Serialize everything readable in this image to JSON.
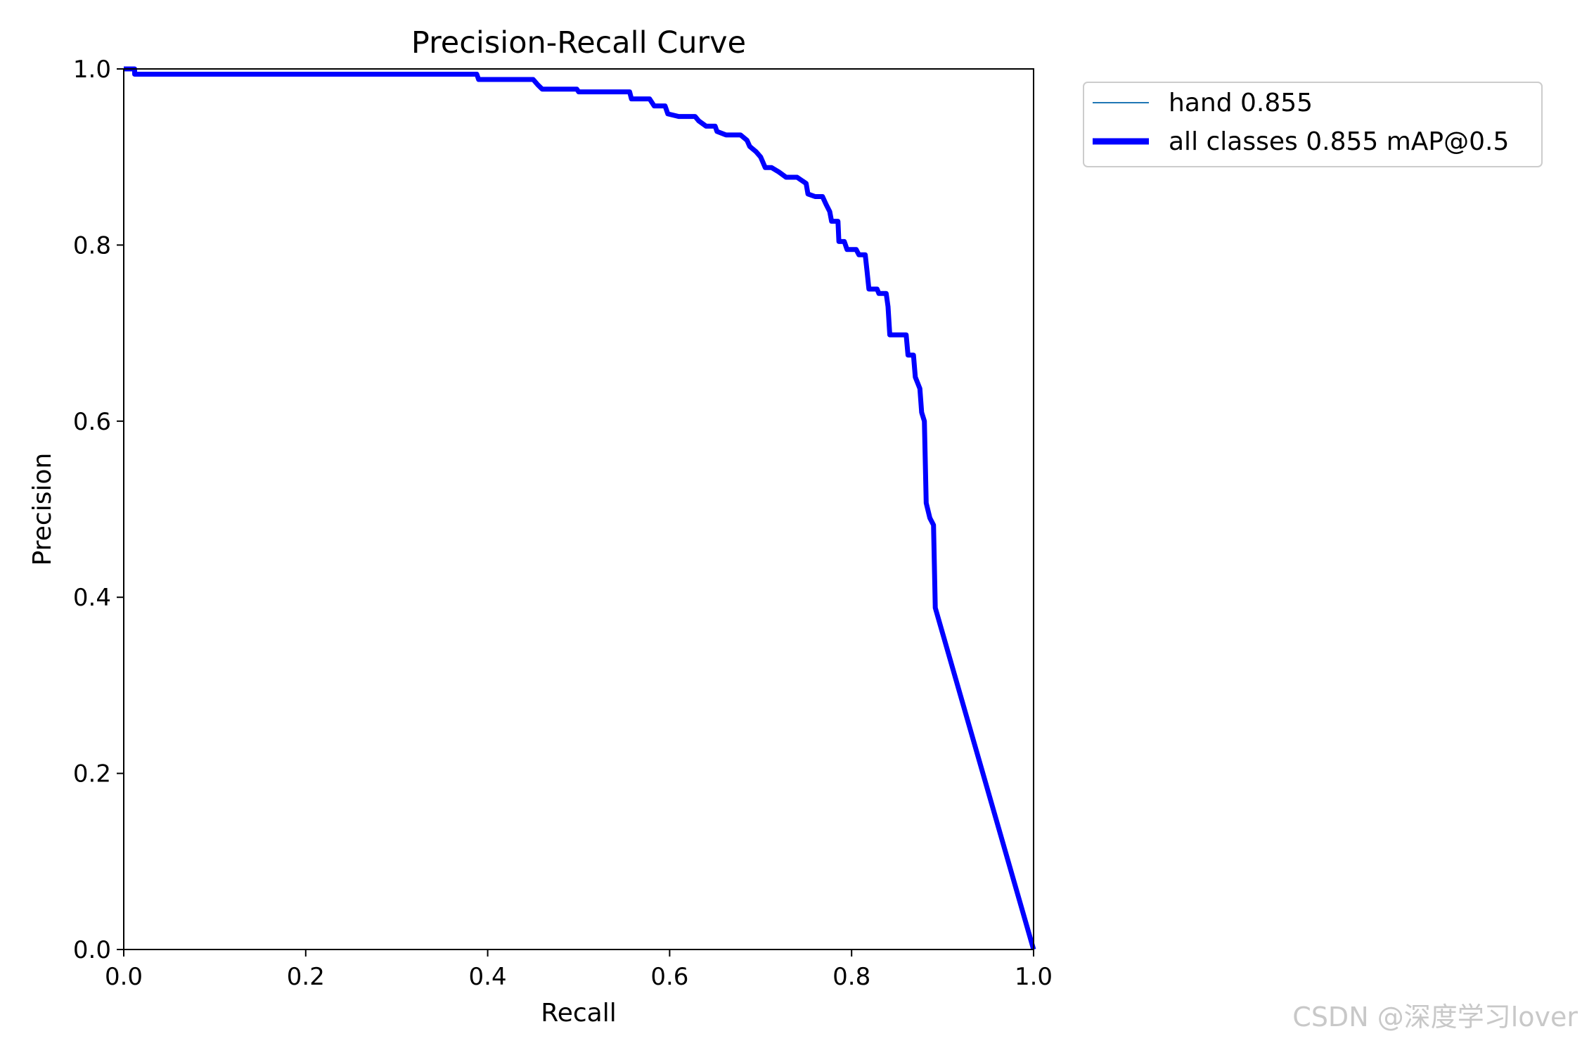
{
  "chart_data": {
    "type": "line",
    "title": "Precision-Recall Curve",
    "xlabel": "Recall",
    "ylabel": "Precision",
    "xlim": [
      0,
      1
    ],
    "ylim": [
      0,
      1
    ],
    "x_ticks": [
      "0.0",
      "0.2",
      "0.4",
      "0.6",
      "0.8",
      "1.0"
    ],
    "y_ticks": [
      "0.0",
      "0.2",
      "0.4",
      "0.6",
      "0.8",
      "1.0"
    ],
    "grid": false,
    "legend_position": "outside-top-right",
    "series": [
      {
        "name": "hand 0.855",
        "color": "#1f77b4",
        "points": [
          [
            0.0,
            1.0
          ],
          [
            0.012,
            1.0
          ],
          [
            0.012,
            0.994
          ],
          [
            0.388,
            0.994
          ],
          [
            0.39,
            0.988
          ],
          [
            0.45,
            0.988
          ],
          [
            0.455,
            0.982
          ],
          [
            0.46,
            0.977
          ],
          [
            0.498,
            0.977
          ],
          [
            0.5,
            0.974
          ],
          [
            0.556,
            0.974
          ],
          [
            0.558,
            0.966
          ],
          [
            0.578,
            0.966
          ],
          [
            0.583,
            0.958
          ],
          [
            0.595,
            0.958
          ],
          [
            0.598,
            0.949
          ],
          [
            0.61,
            0.946
          ],
          [
            0.628,
            0.946
          ],
          [
            0.632,
            0.941
          ],
          [
            0.64,
            0.935
          ],
          [
            0.65,
            0.935
          ],
          [
            0.652,
            0.929
          ],
          [
            0.662,
            0.925
          ],
          [
            0.678,
            0.925
          ],
          [
            0.685,
            0.919
          ],
          [
            0.688,
            0.912
          ],
          [
            0.695,
            0.906
          ],
          [
            0.7,
            0.9
          ],
          [
            0.705,
            0.888
          ],
          [
            0.712,
            0.888
          ],
          [
            0.72,
            0.883
          ],
          [
            0.728,
            0.877
          ],
          [
            0.74,
            0.877
          ],
          [
            0.75,
            0.87
          ],
          [
            0.752,
            0.858
          ],
          [
            0.76,
            0.855
          ],
          [
            0.768,
            0.855
          ],
          [
            0.772,
            0.846
          ],
          [
            0.776,
            0.838
          ],
          [
            0.778,
            0.827
          ],
          [
            0.785,
            0.827
          ],
          [
            0.786,
            0.804
          ],
          [
            0.792,
            0.804
          ],
          [
            0.795,
            0.795
          ],
          [
            0.805,
            0.795
          ],
          [
            0.808,
            0.789
          ],
          [
            0.815,
            0.789
          ],
          [
            0.817,
            0.77
          ],
          [
            0.819,
            0.75
          ],
          [
            0.828,
            0.75
          ],
          [
            0.83,
            0.745
          ],
          [
            0.838,
            0.745
          ],
          [
            0.84,
            0.73
          ],
          [
            0.842,
            0.698
          ],
          [
            0.86,
            0.698
          ],
          [
            0.862,
            0.675
          ],
          [
            0.868,
            0.675
          ],
          [
            0.87,
            0.65
          ],
          [
            0.875,
            0.637
          ],
          [
            0.877,
            0.61
          ],
          [
            0.88,
            0.6
          ],
          [
            0.882,
            0.507
          ],
          [
            0.886,
            0.49
          ],
          [
            0.89,
            0.482
          ],
          [
            0.892,
            0.388
          ],
          [
            1.0,
            0.0
          ]
        ]
      },
      {
        "name": "all classes 0.855 mAP@0.5",
        "color": "#0000ff",
        "same_as": 0
      }
    ]
  },
  "watermark": "CSDN @深度学习lover"
}
